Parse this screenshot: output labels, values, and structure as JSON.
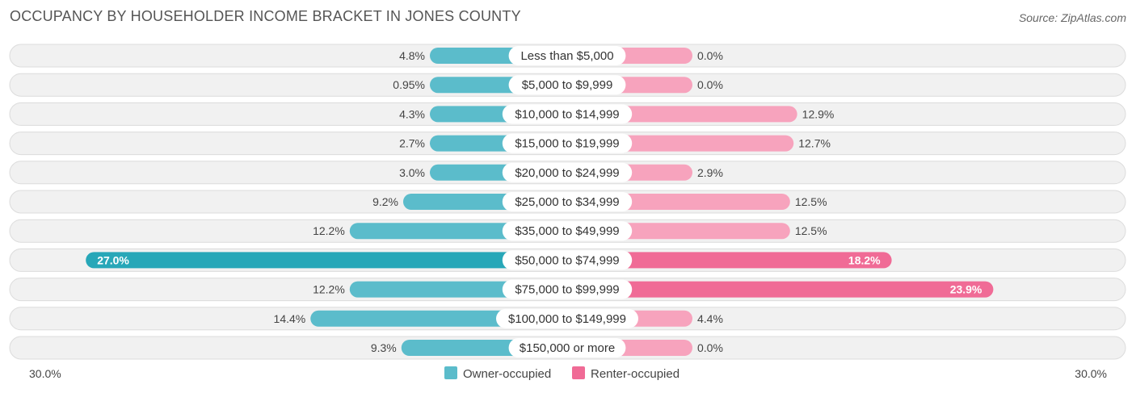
{
  "title": "OCCUPANCY BY HOUSEHOLDER INCOME BRACKET IN JONES COUNTY",
  "source": "Source: ZipAtlas.com",
  "colors": {
    "owner": "#5bbccb",
    "owner_strong": "#27a7b8",
    "renter": "#f7a3bd",
    "renter_strong": "#f06b96",
    "row_bg": "#f1f1f1",
    "row_border": "#dcdcdc"
  },
  "chart_data": {
    "type": "bar",
    "orientation": "horizontal-diverging",
    "title": "OCCUPANCY BY HOUSEHOLDER INCOME BRACKET IN JONES COUNTY",
    "categories": [
      "Less than $5,000",
      "$5,000 to $9,999",
      "$10,000 to $14,999",
      "$15,000 to $19,999",
      "$20,000 to $24,999",
      "$25,000 to $34,999",
      "$35,000 to $49,999",
      "$50,000 to $74,999",
      "$75,000 to $99,999",
      "$100,000 to $149,999",
      "$150,000 or more"
    ],
    "series": [
      {
        "name": "Owner-occupied",
        "values": [
          4.8,
          0.95,
          4.3,
          2.7,
          3.0,
          9.2,
          12.2,
          27.0,
          12.2,
          14.4,
          9.3
        ],
        "labels": [
          "4.8%",
          "0.95%",
          "4.3%",
          "2.7%",
          "3.0%",
          "9.2%",
          "12.2%",
          "27.0%",
          "12.2%",
          "14.4%",
          "9.3%"
        ]
      },
      {
        "name": "Renter-occupied",
        "values": [
          0.0,
          0.0,
          12.9,
          12.7,
          2.9,
          12.5,
          12.5,
          18.2,
          23.9,
          4.4,
          0.0
        ],
        "labels": [
          "0.0%",
          "0.0%",
          "12.9%",
          "12.7%",
          "2.9%",
          "12.5%",
          "12.5%",
          "18.2%",
          "23.9%",
          "4.4%",
          "0.0%"
        ]
      }
    ],
    "axis": {
      "min_label": "30.0%",
      "max_label": "30.0%",
      "max": 30.0
    },
    "legend": {
      "position": "bottom-center",
      "entries": [
        "Owner-occupied",
        "Renter-occupied"
      ]
    }
  }
}
